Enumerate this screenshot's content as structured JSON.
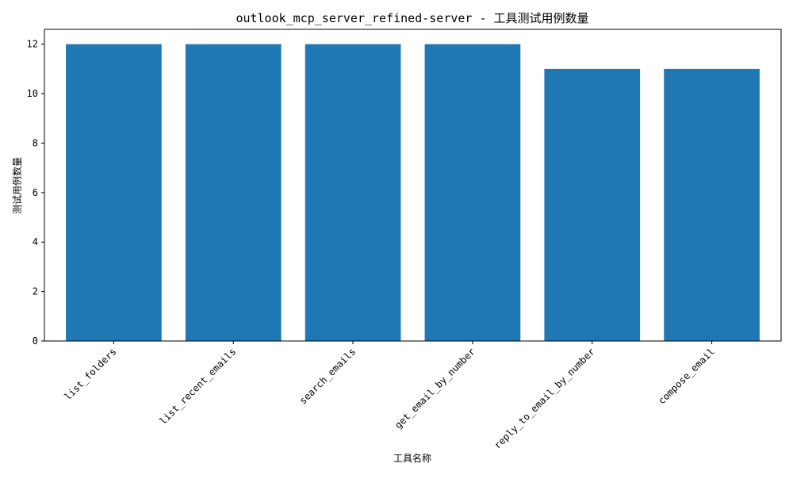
{
  "chart_data": {
    "type": "bar",
    "title": "outlook_mcp_server_refined-server - 工具测试用例数量",
    "xlabel": "工具名称",
    "ylabel": "测试用例数量",
    "categories": [
      "list_folders",
      "list_recent_emails",
      "search_emails",
      "get_email_by_number",
      "reply_to_email_by_number",
      "compose_email"
    ],
    "values": [
      12,
      12,
      12,
      12,
      11,
      11
    ],
    "ylim": [
      0,
      12.6
    ],
    "yticks": [
      0,
      2,
      4,
      6,
      8,
      10,
      12
    ],
    "bar_color": "#1f77b4",
    "grid": false,
    "legend": "none"
  }
}
